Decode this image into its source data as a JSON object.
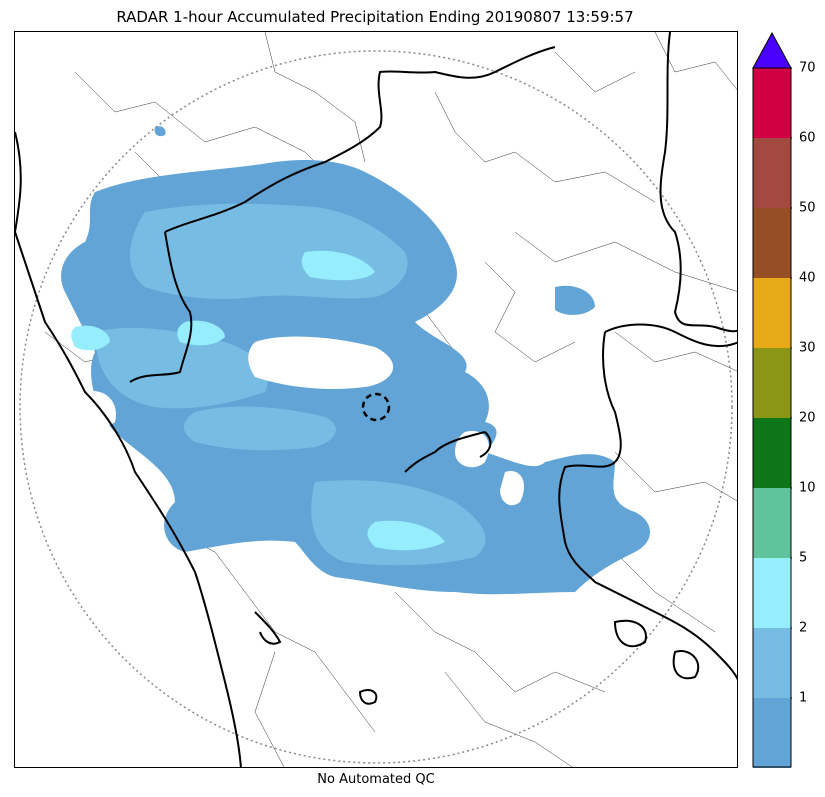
{
  "title": "RADAR 1-hour Accumulated Precipitation Ending 20190807 13:59:57",
  "footer": "No Automated QC",
  "colorbar": {
    "ticks": [
      "1",
      "2",
      "5",
      "10",
      "20",
      "30",
      "40",
      "50",
      "60",
      "70"
    ],
    "bins": [
      {
        "color": "#62a4d6"
      },
      {
        "color": "#77bde3"
      },
      {
        "color": "#96edfd"
      },
      {
        "color": "#5fc49c"
      },
      {
        "color": "#0f7519"
      },
      {
        "color": "#8b9516"
      },
      {
        "color": "#e8a919"
      },
      {
        "color": "#954e26"
      },
      {
        "color": "#a34a40"
      },
      {
        "color": "#d10045"
      }
    ],
    "extend_color": "#4b00ff"
  },
  "map": {
    "precip_colors": {
      "light": "#62a4d6",
      "medium": "#77bde3",
      "heavy": "#96edfd"
    },
    "range_ring_color": "#888888",
    "coast_color": "#000000"
  }
}
